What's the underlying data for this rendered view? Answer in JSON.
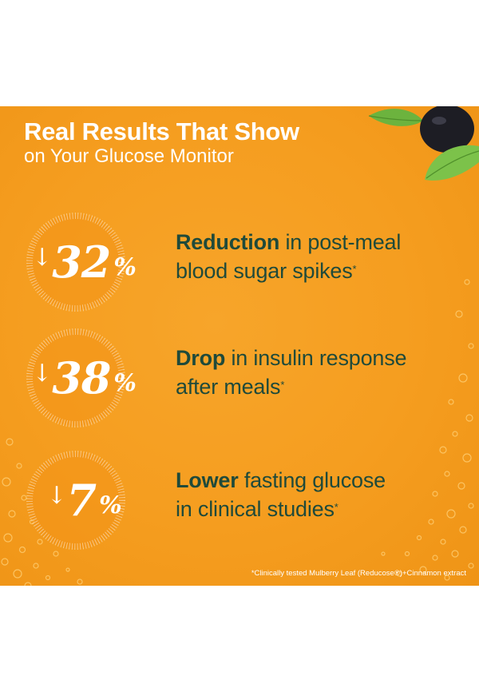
{
  "header": {
    "title": "Real Results That Show",
    "subtitle": "on Your Glucose Monitor"
  },
  "stats": [
    {
      "arrow": "↓",
      "value": "32",
      "unit": "%",
      "highlight": "Reduction",
      "line1_rest": " in post-meal",
      "line2": "blood sugar spikes",
      "mark": "*"
    },
    {
      "arrow": "↓",
      "value": "38",
      "unit": "%",
      "highlight": "Drop",
      "line1_rest": " in insulin response",
      "line2": "after meals",
      "mark": "*"
    },
    {
      "arrow": "↓",
      "value": "7",
      "unit": "%",
      "highlight": "Lower",
      "line1_rest": " fasting glucose",
      "line2": "in clinical studies",
      "mark": "*"
    }
  ],
  "footnote": "*Clinically tested Mulberry Leaf (Reducose®)+Cinnamon extract",
  "colors": {
    "background": "#f59d1f",
    "text_dark": "#1f4a3a",
    "text_light": "#ffffff"
  }
}
